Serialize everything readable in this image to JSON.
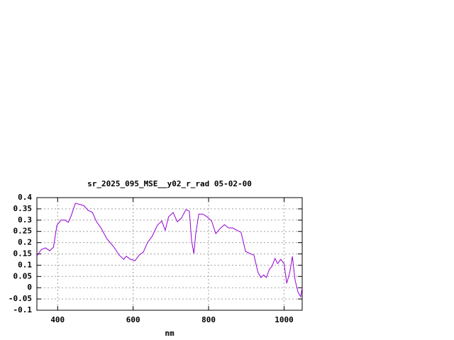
{
  "chart_data": {
    "type": "line",
    "title": "sr_2025_095_MSE__y02_r_rad 05-02-00",
    "x_label": "nm",
    "xlim": [
      345,
      1048
    ],
    "xticks": [
      400,
      600,
      800,
      1000
    ],
    "ylim": [
      -0.1,
      0.4
    ],
    "yticks": [
      -0.1,
      -0.05,
      0,
      0.05,
      0.1,
      0.15,
      0.2,
      0.25,
      0.3,
      0.35,
      0.4
    ],
    "grid": true,
    "series": [
      {
        "color": "#9400d3",
        "x": [
          345,
          357,
          368,
          379,
          389,
          398,
          409,
          420,
          428,
          436,
          447,
          458,
          469,
          481,
          492,
          503,
          515,
          530,
          548,
          563,
          575,
          582,
          593,
          605,
          616,
          627,
          638,
          651,
          664,
          676,
          685,
          694,
          706,
          717,
          728,
          740,
          749,
          755,
          761,
          766,
          774,
          785,
          796,
          808,
          819,
          830,
          842,
          853,
          864,
          875,
          886,
          898,
          909,
          920,
          931,
          939,
          946,
          953,
          961,
          968,
          976,
          983,
          991,
          1000,
          1007,
          1015,
          1022,
          1029,
          1037,
          1044,
          1048
        ],
        "values": [
          0.142,
          0.17,
          0.177,
          0.164,
          0.18,
          0.277,
          0.3,
          0.3,
          0.29,
          0.32,
          0.375,
          0.37,
          0.365,
          0.343,
          0.335,
          0.293,
          0.265,
          0.218,
          0.183,
          0.145,
          0.126,
          0.14,
          0.126,
          0.12,
          0.145,
          0.158,
          0.2,
          0.23,
          0.277,
          0.296,
          0.255,
          0.315,
          0.334,
          0.293,
          0.309,
          0.347,
          0.34,
          0.208,
          0.152,
          0.24,
          0.327,
          0.327,
          0.315,
          0.296,
          0.24,
          0.262,
          0.28,
          0.265,
          0.265,
          0.255,
          0.246,
          0.161,
          0.152,
          0.145,
          0.067,
          0.045,
          0.057,
          0.045,
          0.082,
          0.095,
          0.13,
          0.107,
          0.126,
          0.107,
          0.02,
          0.067,
          0.139,
          0.035,
          -0.02,
          -0.04,
          0
        ]
      }
    ]
  }
}
